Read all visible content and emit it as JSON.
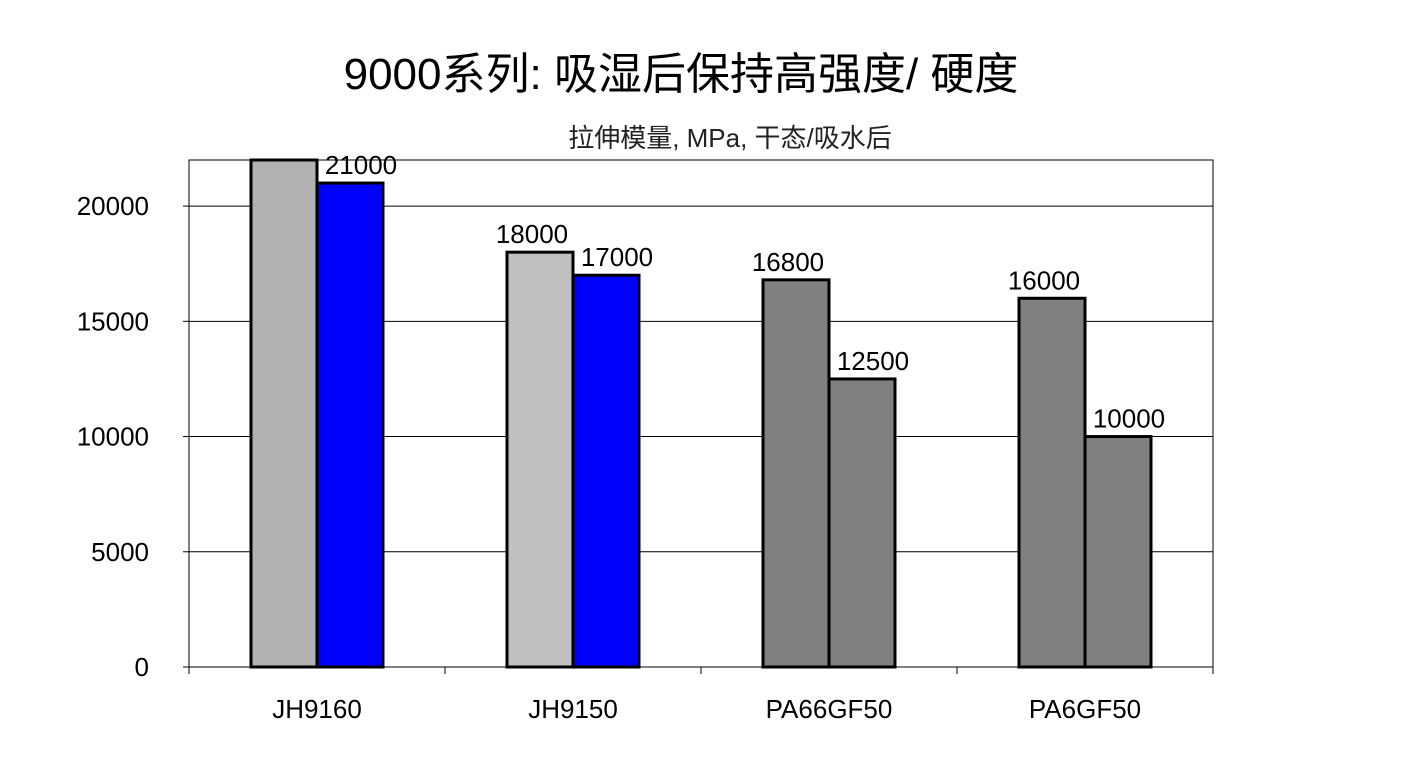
{
  "title": "9000系列: 吸湿后保持高强度/ 硬度",
  "chart_data": {
    "type": "bar",
    "subtitle": "拉伸模量, MPa, 干态/吸水后",
    "xlabel": "",
    "ylabel": "",
    "categories": [
      "JH9160",
      "JH9150",
      "PA66GF50",
      "PA6GF50"
    ],
    "series": [
      {
        "values": [
          22000,
          18000,
          16800,
          16000
        ],
        "colors": [
          "#b2b2b2",
          "#c0c0c0",
          "#808080",
          "#808080"
        ]
      },
      {
        "values": [
          21000,
          17000,
          12500,
          10000
        ],
        "colors": [
          "#0000ff",
          "#0000ff",
          "#808080",
          "#808080"
        ]
      }
    ],
    "data_labels": [
      [
        null,
        "18000",
        "16800",
        "16000"
      ],
      [
        "21000",
        "17000",
        "12500",
        "10000"
      ]
    ],
    "ylim": [
      0,
      22000
    ],
    "yticks": [
      0,
      5000,
      10000,
      15000,
      20000
    ],
    "grid": true,
    "legend": "none"
  }
}
